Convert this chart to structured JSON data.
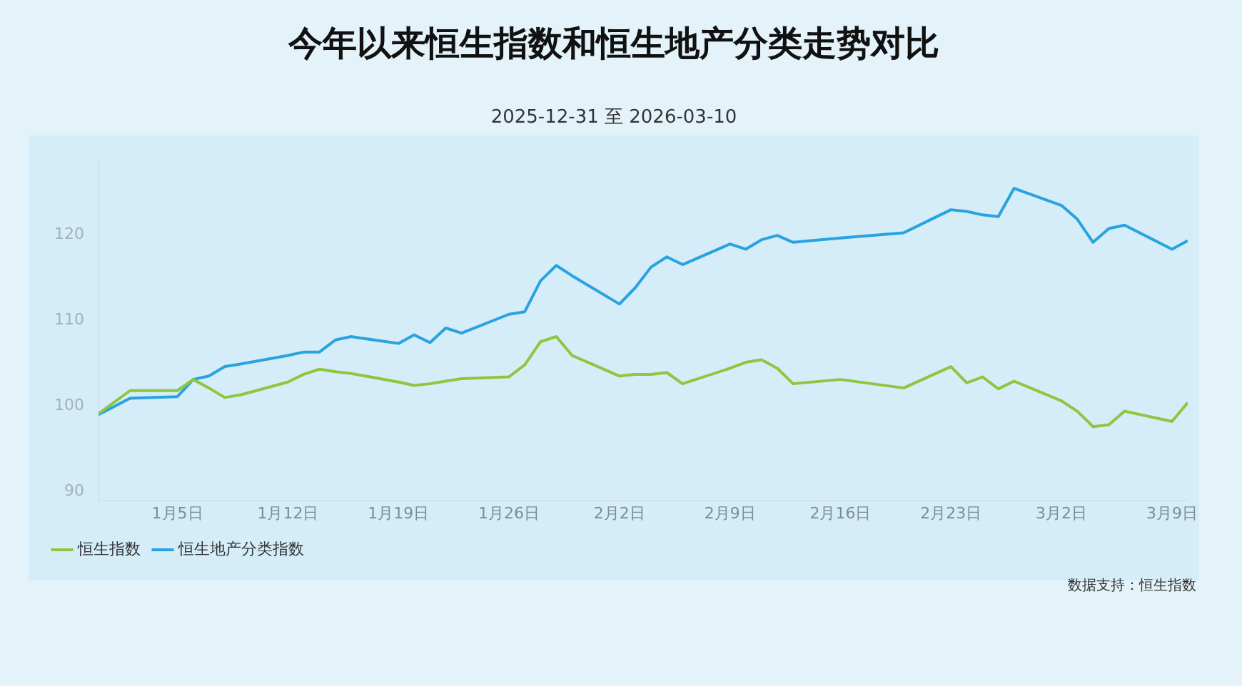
{
  "chart_data": {
    "type": "line",
    "title": "今年以来恒生指数和恒生地产分类走势对比",
    "subtitle": "2025-12-31 至 2026-03-10",
    "x": [
      "2025-12-31",
      "2026-01-02",
      "2026-01-05",
      "2026-01-06",
      "2026-01-07",
      "2026-01-08",
      "2026-01-09",
      "2026-01-12",
      "2026-01-13",
      "2026-01-14",
      "2026-01-15",
      "2026-01-16",
      "2026-01-19",
      "2026-01-20",
      "2026-01-21",
      "2026-01-22",
      "2026-01-23",
      "2026-01-26",
      "2026-01-27",
      "2026-01-28",
      "2026-01-29",
      "2026-01-30",
      "2026-02-02",
      "2026-02-03",
      "2026-02-04",
      "2026-02-05",
      "2026-02-06",
      "2026-02-09",
      "2026-02-10",
      "2026-02-11",
      "2026-02-12",
      "2026-02-13",
      "2026-02-16",
      "2026-02-20",
      "2026-02-23",
      "2026-02-24",
      "2026-02-25",
      "2026-02-26",
      "2026-02-27",
      "2026-03-02",
      "2026-03-03",
      "2026-03-04",
      "2026-03-05",
      "2026-03-06",
      "2026-03-09",
      "2026-03-10"
    ],
    "series": [
      {
        "name": "恒生指数",
        "color": "#8dc63f",
        "values": [
          99.1,
          101.8,
          101.8,
          103.1,
          102.1,
          101.0,
          101.3,
          102.8,
          103.7,
          104.3,
          104.0,
          103.8,
          102.8,
          102.4,
          102.6,
          102.9,
          103.2,
          103.4,
          104.8,
          107.5,
          108.1,
          105.9,
          103.5,
          103.7,
          103.7,
          103.9,
          102.6,
          104.4,
          105.1,
          105.4,
          104.4,
          102.6,
          103.1,
          102.1,
          104.6,
          102.7,
          103.4,
          102.0,
          102.9,
          100.6,
          99.4,
          97.6,
          97.8,
          99.4,
          98.2,
          100.4
        ]
      },
      {
        "name": "恒生地产分类指数",
        "color": "#29a3e0",
        "values": [
          99.0,
          100.9,
          101.1,
          103.1,
          103.5,
          104.6,
          104.9,
          105.9,
          106.3,
          106.3,
          107.7,
          108.1,
          107.3,
          108.3,
          107.4,
          109.1,
          108.5,
          110.7,
          111.0,
          114.6,
          116.4,
          115.2,
          111.9,
          113.8,
          116.2,
          117.4,
          116.5,
          118.9,
          118.3,
          119.4,
          119.9,
          119.1,
          119.6,
          120.2,
          122.9,
          122.7,
          122.3,
          122.1,
          125.4,
          123.4,
          121.8,
          119.1,
          120.7,
          121.1,
          118.3,
          119.3
        ]
      }
    ],
    "xlim": [
      "2025-12-31",
      "2026-03-10"
    ],
    "xticks": [
      {
        "value": "2026-01-05",
        "label": "1月5日"
      },
      {
        "value": "2026-01-12",
        "label": "1月12日"
      },
      {
        "value": "2026-01-19",
        "label": "1月19日"
      },
      {
        "value": "2026-01-26",
        "label": "1月26日"
      },
      {
        "value": "2026-02-02",
        "label": "2月2日"
      },
      {
        "value": "2026-02-09",
        "label": "2月9日"
      },
      {
        "value": "2026-02-16",
        "label": "2月16日"
      },
      {
        "value": "2026-02-23",
        "label": "2月23日"
      },
      {
        "value": "2026-03-02",
        "label": "3月2日"
      },
      {
        "value": "2026-03-09",
        "label": "3月9日"
      }
    ],
    "ylim": [
      89,
      129
    ],
    "yticks": [
      90,
      100,
      110,
      120
    ],
    "grid": false,
    "legend": "bottom left",
    "marker": "none",
    "line_style": "solid",
    "annotations": [
      "数据支持：恒生指数"
    ]
  }
}
